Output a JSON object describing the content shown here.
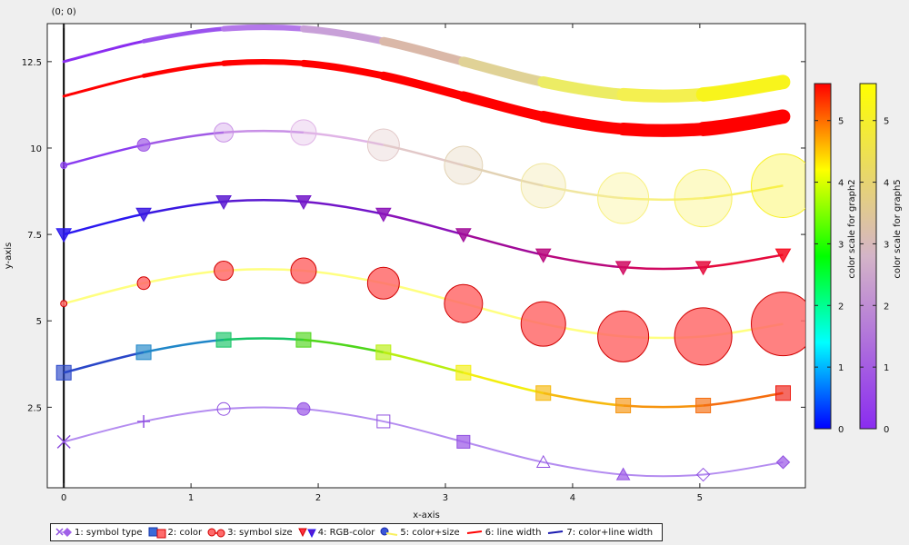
{
  "chart_data": {
    "type": "line",
    "origin_label": "(0; 0)",
    "xlabel": "x-axis",
    "ylabel": "y-axis",
    "xlim": [
      -0.13,
      5.83
    ],
    "ylim": [
      0.17,
      13.6
    ],
    "xticks": [
      0,
      1,
      2,
      3,
      4,
      5
    ],
    "yticks": [
      2.5,
      5,
      7.5,
      10,
      12.5
    ],
    "ytick_labels": [
      "2.5",
      "5",
      "7.5",
      "10",
      "12.5"
    ],
    "x": [
      0,
      0.628,
      1.257,
      1.885,
      2.513,
      3.142,
      3.77,
      4.398,
      5.027,
      5.655
    ],
    "series": [
      {
        "name": "1: symbol type",
        "values": [
          1.5,
          2.09,
          2.45,
          2.45,
          2.09,
          1.5,
          0.91,
          0.55,
          0.55,
          0.91
        ],
        "color": "#b48cf0",
        "symbols": [
          "x",
          "plus",
          "circle-open",
          "circle",
          "square-open",
          "square",
          "triangle-open",
          "triangle",
          "diamond-open",
          "diamond"
        ]
      },
      {
        "name": "2: color",
        "values": [
          3.5,
          4.09,
          4.45,
          4.45,
          4.09,
          3.5,
          2.91,
          2.55,
          2.55,
          2.91
        ],
        "colors": [
          "#2946c8",
          "#1f86c8",
          "#16c466",
          "#4ed61a",
          "#b8ee10",
          "#f3ee0f",
          "#f6b90e",
          "#f6940e",
          "#f56d0e",
          "#ee1c11"
        ]
      },
      {
        "name": "3: symbol size",
        "values": [
          5.5,
          6.09,
          6.45,
          6.45,
          6.09,
          5.5,
          4.91,
          4.55,
          4.55,
          4.91
        ],
        "line_color": "#ffff80",
        "marker_color": "#ff6b6b",
        "sizes": [
          0,
          1,
          2,
          3,
          4,
          5,
          6,
          7,
          8,
          9
        ]
      },
      {
        "name": "4: RGB-color",
        "values": [
          7.5,
          8.09,
          8.45,
          8.45,
          8.09,
          7.5,
          6.91,
          6.55,
          6.55,
          6.91
        ],
        "colors": [
          "#2a18f0",
          "#3a18e0",
          "#5a1ad0",
          "#7215c8",
          "#8a12b8",
          "#a00a98",
          "#b8087c",
          "#d00860",
          "#e50a3c",
          "#f50a1e"
        ]
      },
      {
        "name": "5: color+size",
        "values": [
          9.5,
          10.09,
          10.45,
          10.45,
          10.09,
          9.5,
          8.91,
          8.55,
          8.55,
          8.91
        ],
        "colors": [
          "#8a3cf0",
          "#a05ae6",
          "#c890e6",
          "#e0b4e6",
          "#e2c8c8",
          "#e2d2b4",
          "#f0e6a0",
          "#f8f080",
          "#f8f060",
          "#f8f020"
        ],
        "sizes": [
          0,
          1,
          2,
          3,
          4,
          5,
          6,
          7,
          8,
          9
        ]
      },
      {
        "name": "6: line width",
        "values": [
          11.5,
          12.09,
          12.45,
          12.45,
          12.09,
          11.5,
          10.91,
          10.55,
          10.55,
          10.91
        ],
        "color": "#ff0000",
        "widths": [
          0,
          1,
          2,
          3,
          4,
          5,
          6,
          7,
          8,
          9
        ]
      },
      {
        "name": "7: color+line width",
        "values": [
          12.5,
          13.09,
          13.45,
          13.45,
          13.09,
          12.5,
          11.91,
          11.55,
          11.55,
          11.91
        ],
        "colors": [
          "#8a2cf0",
          "#9a52ee",
          "#b478ea",
          "#c8a0d8",
          "#dab8a8",
          "#e0d296",
          "#ecec64",
          "#f4f050",
          "#f8f41c",
          "#ffff00"
        ],
        "widths": [
          0,
          1,
          2,
          3,
          4,
          5,
          6,
          7,
          8,
          9
        ]
      }
    ],
    "colorbars": [
      {
        "label": "color scale for graph2",
        "range": [
          0,
          5.6
        ],
        "ticks": [
          0,
          1,
          2,
          3,
          4,
          5
        ],
        "gradient": [
          "#0000ff",
          "#00ffff",
          "#00ff00",
          "#ffff00",
          "#ff0000"
        ]
      },
      {
        "label": "color scale for graph5",
        "range": [
          0,
          5.6
        ],
        "ticks": [
          0,
          1,
          2,
          3,
          4,
          5
        ],
        "gradient": [
          "#8a2cf0",
          "#d4b4c8",
          "#ffff00"
        ]
      }
    ],
    "legend_position": "bottom-left",
    "grid": false
  }
}
